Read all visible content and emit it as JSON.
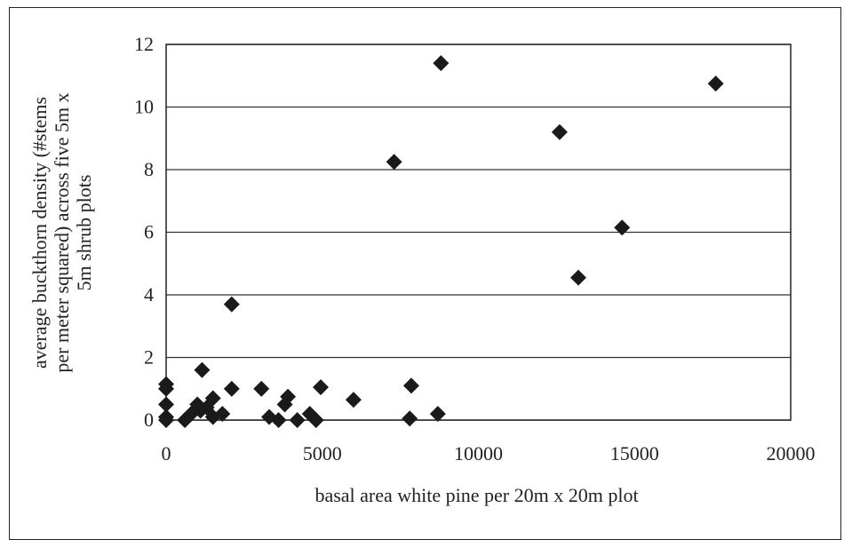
{
  "chart_data": {
    "type": "scatter",
    "xlabel": "basal area white pine per 20m x 20m plot",
    "ylabel_lines": [
      "average buckthorn density (#stems",
      "per meter squared) across five 5m x",
      "5m shrub plots"
    ],
    "xlim": [
      0,
      20000
    ],
    "ylim": [
      0,
      12
    ],
    "x_ticks": [
      0,
      5000,
      10000,
      15000,
      20000
    ],
    "y_ticks": [
      0,
      2,
      4,
      6,
      8,
      10,
      12
    ],
    "grid": "horizontal",
    "marker": "diamond",
    "marker_color": "#1a1a1a",
    "points": [
      {
        "x": 0,
        "y": 1.15
      },
      {
        "x": 0,
        "y": 1.0
      },
      {
        "x": 0,
        "y": 0.5
      },
      {
        "x": 0,
        "y": 0.1
      },
      {
        "x": 0,
        "y": 0.0
      },
      {
        "x": 600,
        "y": 0.0
      },
      {
        "x": 800,
        "y": 0.2
      },
      {
        "x": 1000,
        "y": 0.5
      },
      {
        "x": 1100,
        "y": 0.3
      },
      {
        "x": 1150,
        "y": 1.6
      },
      {
        "x": 1300,
        "y": 0.4
      },
      {
        "x": 1500,
        "y": 0.1
      },
      {
        "x": 1500,
        "y": 0.7
      },
      {
        "x": 1800,
        "y": 0.2
      },
      {
        "x": 2100,
        "y": 3.7
      },
      {
        "x": 2100,
        "y": 1.0
      },
      {
        "x": 3050,
        "y": 1.0
      },
      {
        "x": 3300,
        "y": 0.1
      },
      {
        "x": 3600,
        "y": 0.0
      },
      {
        "x": 3800,
        "y": 0.5
      },
      {
        "x": 3900,
        "y": 0.75
      },
      {
        "x": 4200,
        "y": 0.0
      },
      {
        "x": 4600,
        "y": 0.2
      },
      {
        "x": 4800,
        "y": 0.0
      },
      {
        "x": 4950,
        "y": 1.05
      },
      {
        "x": 6000,
        "y": 0.65
      },
      {
        "x": 7300,
        "y": 8.25
      },
      {
        "x": 7800,
        "y": 0.05
      },
      {
        "x": 7850,
        "y": 1.1
      },
      {
        "x": 8700,
        "y": 0.2
      },
      {
        "x": 8800,
        "y": 11.4
      },
      {
        "x": 12600,
        "y": 9.2
      },
      {
        "x": 13200,
        "y": 4.55
      },
      {
        "x": 14600,
        "y": 6.15
      },
      {
        "x": 17600,
        "y": 10.75
      }
    ]
  }
}
